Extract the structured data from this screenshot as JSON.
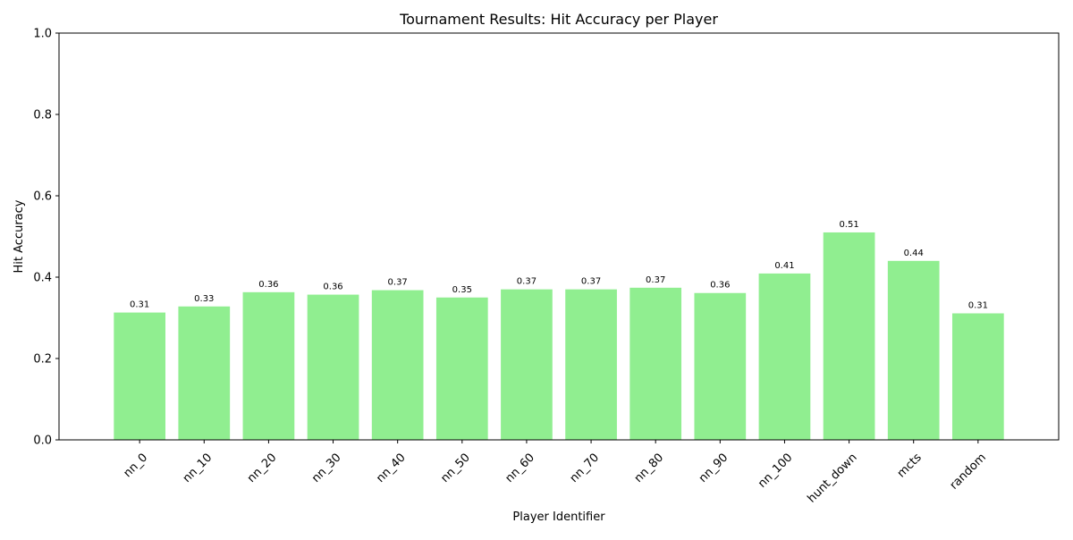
{
  "chart_data": {
    "type": "bar",
    "title": "Tournament Results: Hit Accuracy per Player",
    "xlabel": "Player Identifier",
    "ylabel": "Hit Accuracy",
    "categories": [
      "nn_0",
      "nn_10",
      "nn_20",
      "nn_30",
      "nn_40",
      "nn_50",
      "nn_60",
      "nn_70",
      "nn_80",
      "nn_90",
      "nn_100",
      "hunt_down",
      "mcts",
      "random"
    ],
    "values": [
      0.313,
      0.328,
      0.363,
      0.357,
      0.368,
      0.35,
      0.37,
      0.37,
      0.374,
      0.361,
      0.409,
      0.51,
      0.44,
      0.311
    ],
    "value_labels": [
      "0.31",
      "0.33",
      "0.36",
      "0.36",
      "0.37",
      "0.35",
      "0.37",
      "0.37",
      "0.37",
      "0.36",
      "0.41",
      "0.51",
      "0.44",
      "0.31"
    ],
    "ylim": [
      0,
      1.0
    ],
    "yticks": [
      0.0,
      0.2,
      0.4,
      0.6,
      0.8,
      1.0
    ],
    "ytick_labels": [
      "0.0",
      "0.2",
      "0.4",
      "0.6",
      "0.8",
      "1.0"
    ],
    "bar_color": "#90ee90",
    "grid": false,
    "legend": "none"
  }
}
